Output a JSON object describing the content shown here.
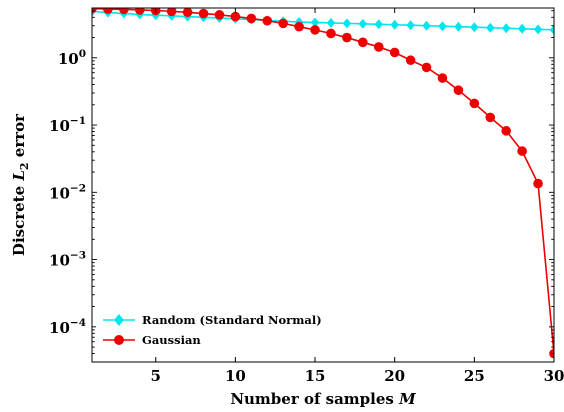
{
  "chart_data": {
    "type": "line",
    "title": "",
    "xlabel_text": "Number of samples ",
    "xlabel_var": "M",
    "ylabel_text": "Discrete ",
    "ylabel_var": "L",
    "ylabel_sub": "2",
    "ylabel_tail": " error",
    "xlim": [
      1,
      30
    ],
    "ylim": [
      3e-05,
      5.5
    ],
    "yscale": "log",
    "grid": false,
    "legend_position": "bottom-left",
    "x_ticks": [
      5,
      10,
      15,
      20,
      25,
      30
    ],
    "x_tick_labels": [
      "5",
      "10",
      "15",
      "20",
      "25",
      "30"
    ],
    "y_ticks": [
      {
        "value": 1,
        "base": "10",
        "exp": "0"
      },
      {
        "value": 0.1,
        "base": "10",
        "exp": "−1"
      },
      {
        "value": 0.01,
        "base": "10",
        "exp": "−2"
      },
      {
        "value": 0.001,
        "base": "10",
        "exp": "−3"
      },
      {
        "value": 0.0001,
        "base": "10",
        "exp": "−4"
      }
    ],
    "x": [
      1,
      2,
      3,
      4,
      5,
      6,
      7,
      8,
      9,
      10,
      11,
      12,
      13,
      14,
      15,
      16,
      17,
      18,
      19,
      20,
      21,
      22,
      23,
      24,
      25,
      26,
      27,
      28,
      29,
      30
    ],
    "series": [
      {
        "name": "Random (Standard Normal)",
        "color": "#00e5ee",
        "marker": "diamond",
        "values": [
          4.9,
          4.7,
          4.55,
          4.4,
          4.3,
          4.2,
          4.1,
          4.0,
          3.9,
          3.8,
          3.7,
          3.6,
          3.5,
          3.4,
          3.35,
          3.3,
          3.25,
          3.2,
          3.15,
          3.1,
          3.05,
          3.0,
          2.95,
          2.9,
          2.85,
          2.8,
          2.75,
          2.7,
          2.65,
          2.6
        ]
      },
      {
        "name": "Gaussian",
        "color": "#ee0000",
        "marker": "circle",
        "values": [
          5.4,
          5.3,
          5.25,
          5.15,
          5.05,
          4.9,
          4.75,
          4.55,
          4.35,
          4.1,
          3.85,
          3.55,
          3.25,
          2.9,
          2.6,
          2.3,
          2.0,
          1.7,
          1.45,
          1.2,
          0.92,
          0.72,
          0.5,
          0.33,
          0.21,
          0.13,
          0.082,
          0.041,
          0.0135,
          4e-05
        ]
      }
    ]
  }
}
